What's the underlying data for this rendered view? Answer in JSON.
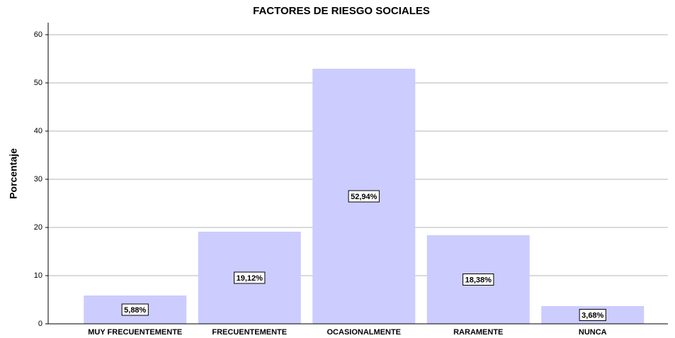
{
  "chart_data": {
    "type": "bar",
    "title": "FACTORES DE RIESGO SOCIALES",
    "y_label": "Porcentaje",
    "categories": [
      "MUY FRECUENTEMENTE",
      "FRECUENTEMENTE",
      "OCASIONALMENTE",
      "RARAMENTE",
      "NUNCA"
    ],
    "values": [
      5.88,
      19.12,
      52.94,
      18.38,
      3.68
    ],
    "value_labels": [
      "5,88%",
      "19,12%",
      "52,94%",
      "18,38%",
      "3,68%"
    ],
    "color": "#ccccff",
    "ylim": [
      0,
      62.5
    ],
    "yticks": [
      0,
      10,
      20,
      30,
      40,
      50,
      60
    ],
    "grid": true
  }
}
